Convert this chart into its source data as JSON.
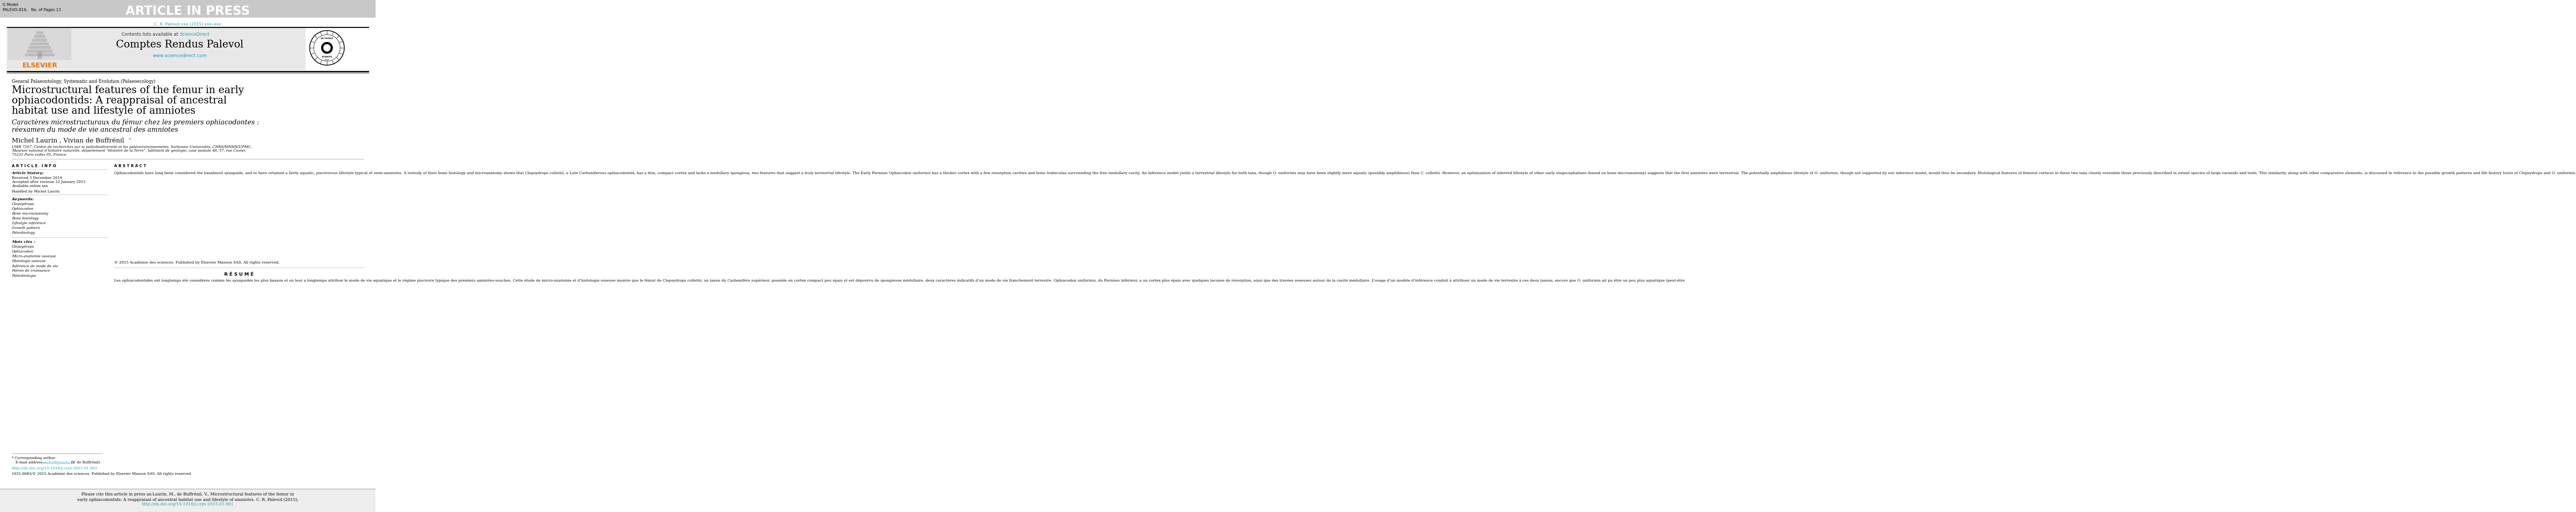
{
  "page_bg": "#ffffff",
  "header_bar_color": "#c8c8c8",
  "article_in_press": "ARTICLE IN PRESS",
  "g_model": "G Model",
  "palevo": "PALEVO-816;   No. of Pages 13",
  "journal_cite": "C. R. Palevol xxx (2015) xxx–xxx",
  "journal_cite_color": "#1a9dbc",
  "header_box_color": "#e8e8e8",
  "journal_name": "Comptes Rendus Palevol",
  "contents_text": "Contents lists available at ",
  "science_direct": "ScienceDirect",
  "sd_color": "#1a9dbc",
  "www_text": "www.sciencedirect.com",
  "www_color": "#1a9dbc",
  "elsevier_color": "#f07000",
  "section_label": "General Palaeontology, Systematic and Evolution (Palaeoecology)",
  "title_en_line1": "Microstructural features of the femur in early",
  "title_en_line2": "ophiacodontids: A reappraisal of ancestral",
  "title_en_line3": "habitat use and lifestyle of amniotes",
  "title_fr_line1": "Caractères microstructuraux du fémur chez les premiers ophiacodontes :",
  "title_fr_line2": "réexamen du mode de vie ancestral des amniotes",
  "authors_text": "Michel Laurin , Vivian de Buffrénil",
  "author_star": "*",
  "affiliation1": "UMR 7207, Centre de recherches sur la paléobiodiversité et les paléoenvironnements, Sorbonne Universités, CNRS/MNHN/UPMC,",
  "affiliation2": "Muséum national d’histoire naturelle, département “Histoire de la Terre”, bâtiment de géologie, case postale 48, 57, rue Cuvier,",
  "affiliation3": "75231 Paris cedex 05, France",
  "article_info_label": "A R T I C L E   I N F O",
  "abstract_label": "A B S T R A C T",
  "article_history": "Article history:",
  "received": "Received 3 December 2014",
  "accepted": "Accepted after revision 22 January 2015",
  "available": "Available online xxx",
  "handled": "Handled by Michel Laurin",
  "keywords_label": "Keywords:",
  "kw1": "Clepsydrops",
  "kw2": "Ophiacodon",
  "kw3": "Bone microanatomy",
  "kw4": "Bone histology",
  "kw5": "Lifestyle inference",
  "kw6": "Growth pattern",
  "kw7": "Paleobiology",
  "abstract_text": "Ophiacodontids have long been considered the basalmost synapsids, and to have retained a fairly aquatic, piscivorous lifestyle typical of stem-amniotes. A restudy of their bone histology and microanatomy shows that Clepsydrops collettii, a Late Carboniferous ophiacodontid, has a thin, compact cortex and lacks a medullary spongiosa, two features that suggest a truly terrestrial lifestyle. The Early Permian Ophiacodon uniformis has a thicker cortex with a few resorption cavities and bone trabeculae surrounding the free medullary cavity. An inference model yields a terrestrial lifestyle for both taxa, though O. uniformis may have been slightly more aquatic (possibly amphibious) than C. collettii. However, an optimization of inferred lifestyle of other early stegocephalians (based on bone microanatomy) suggests that the first amniotes were terrestrial. The potentially amphibious lifestyle of O. uniformis, though not supported by our inference model, would thus be secondary. Histological features of femoral cortices in these two taxa closely resemble those previously described in extant species of large varanids and teids. This similarity, along with other comparative elements, is discussed in reference to the possible growth patterns and life history traits of Clepsydrops and O. uniformis.",
  "copyright_line": "© 2015 Académie des sciences. Published by Elsevier Masson SAS. All rights reserved.",
  "resume_label": "R É S U M É",
  "resume_text": "Les ophiacodontidés ont longtemps été considérés comme les synapsidés les plus basaux et on leur a longtemps attribué le mode de vie aquatique et le régime piscivore typique des premiers amniotes-souches. Cette étude de micro-anatomie et d’histologie osseuse montre que le fémur de Clepsydrops collettii, un taxon du Carbonifère supérieur, possède un cortex compact peu épais et est dépourvu de spongieuse médullaire, deux caractères indicatifs d’un mode de vie franchement terrestre. Ophiacodon uniformis, du Permien inférieur, a un cortex plus épais avec quelques lacunes de résorption, ainsi que des travées osseuses autour de la cavité médullaire. L’usage d’un modèle d’inférence conduit à attribuer un mode de vie terrestre à ces deux taxons, encore que O. uniformis ait pu être un peu plus aquatique (peut-être",
  "mots_cles_label": "Mots clés :",
  "mc1": "Clepsydrops",
  "mc2": "Ophiacodon",
  "mc3": "Micro-anatomie osseuse",
  "mc4": "Histologie osseuse",
  "mc5": "Inférence de mode de vie",
  "mc6": "Patron de croissance",
  "mc7": "Paléobiologie",
  "corr_author": "* Corresponding author.",
  "email_label": "E-mail address:",
  "email": "vdebuff@mnhn.fr",
  "email_color": "#1a9dbc",
  "email_suffix": " (V. de Buffrénil).",
  "doi": "http://dx.doi.org/10.1016/j.crpv.2015.01.001",
  "doi_color": "#1a9dbc",
  "issn_line": "1631-0683/© 2015 Académie des sciences. Published by Elsevier Masson SAS. All rights reserved.",
  "footer_bg": "#eeeeee",
  "footer_line1": "Please cite this article in press as:Laurin, M., de Buffrénil, V., Microstructural features of the femur in",
  "footer_line2": "early ophiacodontids: A reappraisal of ancestral habitat use and lifestyle of amniotes. C. R. Palevol (2015),",
  "footer_line3": "http://dx.doi.org/10.1016/j.crpv.2015.01.001",
  "footer_link_color": "#1a9dbc"
}
